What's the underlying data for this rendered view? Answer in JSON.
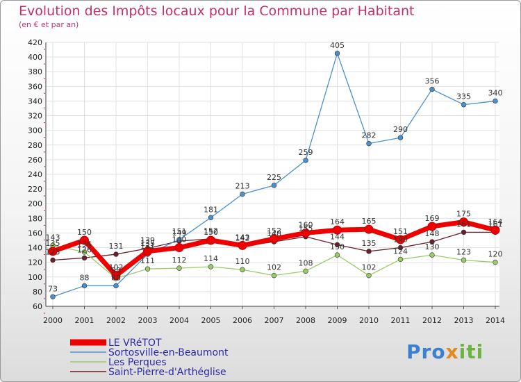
{
  "chart_data": {
    "type": "line",
    "title": "Evolution des Impôts locaux pour la Commune par Habitant",
    "subtitle": "(en € et par an)",
    "categories": [
      "2000",
      "2001",
      "2002",
      "2003",
      "2004",
      "2005",
      "2006",
      "2007",
      "2008",
      "2009",
      "2010",
      "2011",
      "2012",
      "2013",
      "2014"
    ],
    "ylim": [
      60,
      420
    ],
    "yticks": [
      60,
      80,
      100,
      120,
      140,
      160,
      180,
      200,
      220,
      240,
      260,
      280,
      300,
      320,
      340,
      360,
      380,
      400,
      420
    ],
    "series": [
      {
        "name": "Saint-Pierre-d'Arthéglise",
        "color": "#6b1f2a",
        "width": 1.3,
        "values": [
          123,
          126,
          131,
          139,
          149,
          152,
          142,
          148,
          155,
          144,
          135,
          140,
          148,
          161,
          161
        ],
        "labels": [
          "123",
          "126",
          "131",
          "139",
          "149",
          "152",
          "142",
          "148",
          "155",
          "144",
          "135",
          "140",
          "148",
          "161",
          "161"
        ]
      },
      {
        "name": "Les Perques",
        "color": "#99cc66",
        "width": 1.3,
        "values": [
          143,
          134,
          98,
          111,
          112,
          114,
          110,
          102,
          108,
          130,
          102,
          124,
          130,
          123,
          120
        ],
        "labels": [
          "143",
          "134",
          "98",
          "111",
          "112",
          "114",
          "110",
          "102",
          "108",
          "130",
          "102",
          "124",
          "130",
          "123",
          "120"
        ]
      },
      {
        "name": "Sortosville-en-Beaumont",
        "color": "#4a90cc",
        "width": 1.3,
        "values": [
          73,
          88,
          88,
          131,
          151,
          181,
          213,
          225,
          259,
          405,
          282,
          290,
          356,
          335,
          340
        ],
        "labels": [
          "73",
          "88",
          "88",
          "131",
          "151",
          "181",
          "213",
          "225",
          "259",
          "405",
          "282",
          "290",
          "356",
          "335",
          "340"
        ]
      },
      {
        "name": "LE VRéTOT",
        "color": "#ee0000",
        "width": 7,
        "values": [
          135,
          150,
          102,
          135,
          140,
          150,
          143,
          152,
          160,
          164,
          165,
          151,
          169,
          175,
          164
        ],
        "labels": [
          "135",
          "150",
          "102",
          "135",
          "140",
          "150",
          "143",
          "152",
          "160",
          "164",
          "165",
          "151",
          "169",
          "175",
          "164"
        ]
      }
    ],
    "legend": {
      "position": "bottom-left",
      "entries": [
        "LE VRéTOT",
        "Sortosville-en-Beaumont",
        "Les Perques",
        "Saint-Pierre-d'Arthéglise"
      ]
    }
  },
  "branding": {
    "logo_parts": [
      "Pro",
      "x",
      "iti"
    ]
  }
}
